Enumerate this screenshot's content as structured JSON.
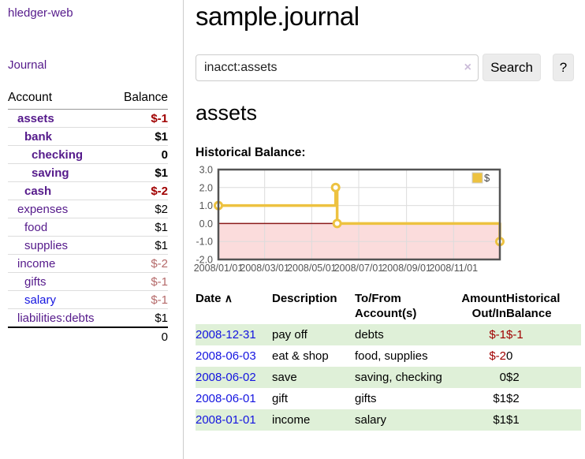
{
  "colors": {
    "purple": "#551a8b",
    "blue": "#1414e0",
    "neg_dark": "#a00000",
    "neg_light": "#b56a6a",
    "row_green": "#dff0d8",
    "divider": "#cccccc",
    "btn_bg": "#ececec"
  },
  "app": {
    "brand": "hledger-web"
  },
  "sidebar": {
    "nav_journal": "Journal",
    "header": {
      "account": "Account",
      "balance": "Balance"
    },
    "rows": [
      {
        "name": "assets",
        "depth": 1,
        "bold": true,
        "balance": "$-1",
        "balance_style": "neg-bold"
      },
      {
        "name": "bank",
        "depth": 2,
        "bold": true,
        "balance": "$1",
        "balance_style": "bold"
      },
      {
        "name": "checking",
        "depth": 3,
        "bold": true,
        "balance": "0",
        "balance_style": "bold"
      },
      {
        "name": "saving",
        "depth": 3,
        "bold": true,
        "balance": "$1",
        "balance_style": "bold"
      },
      {
        "name": "cash",
        "depth": 2,
        "bold": true,
        "balance": "$-2",
        "balance_style": "neg-bold"
      },
      {
        "name": "expenses",
        "depth": 1,
        "bold": false,
        "balance": "$2",
        "balance_style": "plain"
      },
      {
        "name": "food",
        "depth": 2,
        "bold": false,
        "balance": "$1",
        "balance_style": "plain"
      },
      {
        "name": "supplies",
        "depth": 2,
        "bold": false,
        "balance": "$1",
        "balance_style": "plain"
      },
      {
        "name": "income",
        "depth": 1,
        "bold": false,
        "balance": "$-2",
        "balance_style": "neg-light"
      },
      {
        "name": "gifts",
        "depth": 2,
        "bold": false,
        "balance": "$-1",
        "balance_style": "neg-light"
      },
      {
        "name": "salary",
        "depth": 2,
        "bold": false,
        "link_color": "blue",
        "balance": "$-1",
        "balance_style": "neg-light"
      },
      {
        "name": "liabilities:debts",
        "depth": 1,
        "bold": false,
        "balance": "$1",
        "balance_style": "plain"
      }
    ],
    "total": "0"
  },
  "main": {
    "title": "sample.journal",
    "search": {
      "value": "inacct:assets",
      "clear_icon": "×",
      "button_label": "Search",
      "help_label": "?"
    },
    "account_heading": "assets",
    "chart_label": "Historical Balance:"
  },
  "chart_data": {
    "type": "line",
    "title": "Historical Balance",
    "series": [
      {
        "name": "$",
        "color": "#EDC240",
        "step": true,
        "points": [
          {
            "date": "2008-01-01",
            "day": 0,
            "value": 1.0
          },
          {
            "date": "2008-06-01",
            "day": 152,
            "value": 2.0
          },
          {
            "date": "2008-06-03",
            "day": 154,
            "value": 0.0
          },
          {
            "date": "2008-12-31",
            "day": 365,
            "value": -1.0
          }
        ]
      }
    ],
    "x_ticks": [
      {
        "label": "2008/01/01",
        "day": 0
      },
      {
        "label": "2008/03/01",
        "day": 60
      },
      {
        "label": "2008/05/01",
        "day": 121
      },
      {
        "label": "2008/07/01",
        "day": 182
      },
      {
        "label": "2008/09/01",
        "day": 244
      },
      {
        "label": "2008/11/01",
        "day": 305
      }
    ],
    "y_ticks": [
      3.0,
      2.0,
      1.0,
      0.0,
      -1.0,
      -2.0
    ],
    "y_tick_labels": [
      "3.0",
      "2.0",
      "1.0",
      "0.0",
      "-1.0",
      "-2.0"
    ],
    "x_range_days": [
      0,
      365
    ],
    "ylim": [
      -2.0,
      3.0
    ],
    "grid": true,
    "legend": {
      "label": "$",
      "position": "top-right"
    },
    "negative_region_shaded": true,
    "style": {
      "pink_fill": "#fbdcdc",
      "zero_line": "#8b1a1a",
      "grid_line": "#dcdcdc",
      "border": "#545454",
      "axis_text": "#545454"
    }
  },
  "table": {
    "headers": {
      "date": "Date",
      "sort_icon": "∧",
      "description": "Description",
      "tofrom": "To/From Account(s)",
      "amount": "Amount Out/In",
      "balance": "Historical Balance"
    },
    "rows": [
      {
        "date": "2008-12-31",
        "description": "pay off",
        "accounts": "debts",
        "amount": "$-1",
        "balance": "$-1"
      },
      {
        "date": "2008-06-03",
        "description": "eat & shop",
        "accounts": "food, supplies",
        "amount": "$-2",
        "balance": "0"
      },
      {
        "date": "2008-06-02",
        "description": "save",
        "accounts": "saving, checking",
        "amount": "0",
        "balance": "$2"
      },
      {
        "date": "2008-06-01",
        "description": "gift",
        "accounts": "gifts",
        "amount": "$1",
        "balance": "$2"
      },
      {
        "date": "2008-01-01",
        "description": "income",
        "accounts": "salary",
        "amount": "$1",
        "balance": "$1"
      }
    ]
  }
}
